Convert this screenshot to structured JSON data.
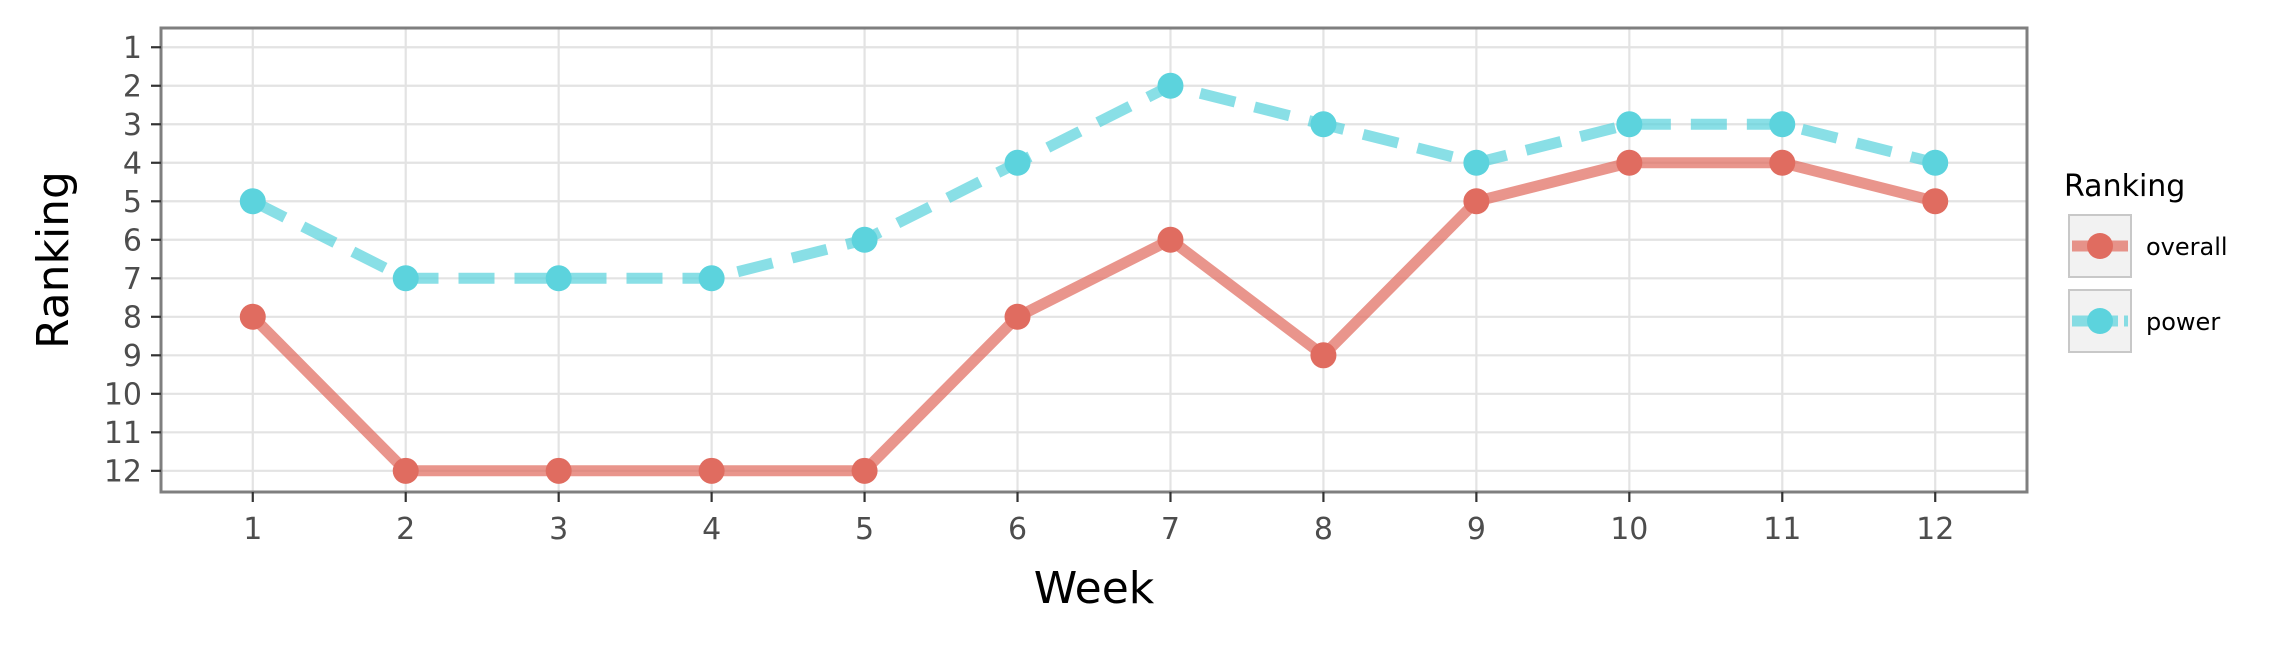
{
  "chart_data": {
    "type": "line",
    "xlabel": "Week",
    "ylabel": "Ranking",
    "x": [
      1,
      2,
      3,
      4,
      5,
      6,
      7,
      8,
      9,
      10,
      11,
      12
    ],
    "xlim": [
      0.4,
      12.6
    ],
    "ylim": [
      12.55,
      0.5
    ],
    "y_axis_reversed": true,
    "x_ticks": [
      1,
      2,
      3,
      4,
      5,
      6,
      7,
      8,
      9,
      10,
      11,
      12
    ],
    "y_ticks": [
      1,
      2,
      3,
      4,
      5,
      6,
      7,
      8,
      9,
      10,
      11,
      12
    ],
    "grid": true,
    "legend": {
      "title": "Ranking",
      "position": "right"
    },
    "series": [
      {
        "name": "overall",
        "color": "#E06C60",
        "line_style": "solid",
        "values": [
          8,
          12,
          12,
          12,
          12,
          8,
          6,
          9,
          5,
          4,
          4,
          5
        ]
      },
      {
        "name": "power",
        "color": "#5CD3DD",
        "line_style": "dashed",
        "values": [
          5,
          7,
          7,
          7,
          6,
          4,
          2,
          3,
          4,
          3,
          3,
          4
        ]
      }
    ]
  }
}
